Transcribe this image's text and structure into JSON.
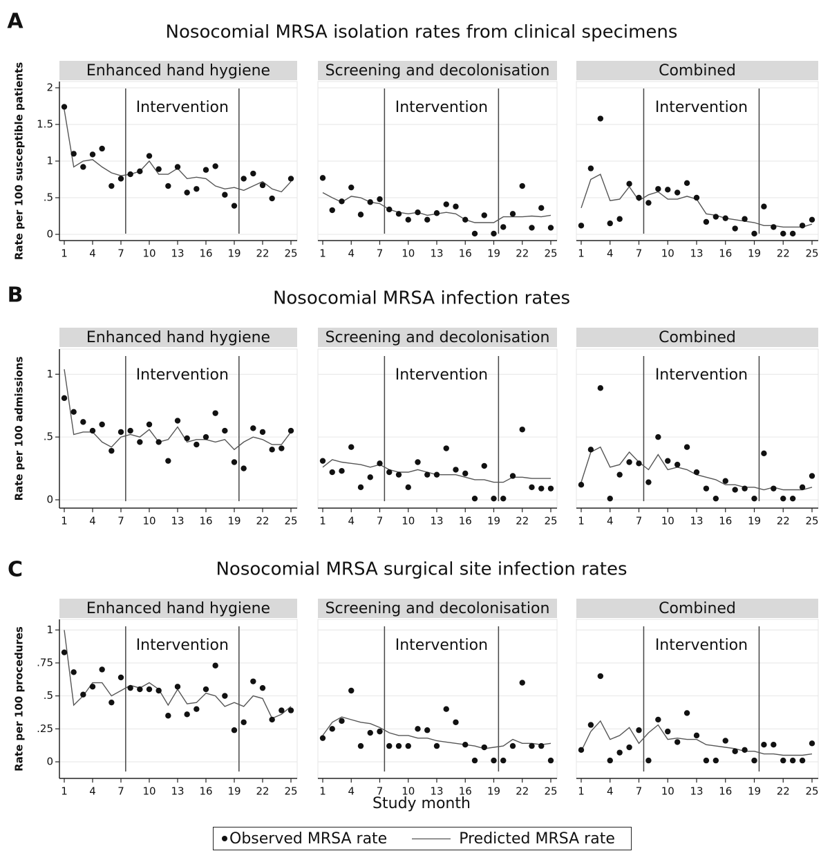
{
  "xlabel": "Study month",
  "legend": {
    "observed": "Observed MRSA rate",
    "predicted": "Predicted MRSA rate"
  },
  "colors": {
    "strip": "#d9d9d9",
    "points": "#111111",
    "line": "#555555",
    "grid": "#e6e6e6",
    "intervention_line": "#444444"
  },
  "chart_data": [
    {
      "type": "line",
      "label": "A",
      "title": "Nosocomial MRSA isolation rates from clinical specimens",
      "ylabel": "Rate per 100 susceptible patients",
      "ylim": [
        0,
        2
      ],
      "yticks": [
        0,
        0.5,
        1,
        1.5,
        2
      ],
      "ytick_labels": [
        "0",
        ".5",
        "1",
        "1.5",
        "2"
      ],
      "xlim": [
        1,
        25
      ],
      "xticks": [
        1,
        4,
        7,
        10,
        13,
        16,
        19,
        22,
        25
      ],
      "panels": [
        {
          "name": "Enhanced hand hygiene",
          "annotation": "Intervention",
          "intervention": [
            7.5,
            19.5
          ],
          "observed": [
            1.74,
            1.1,
            0.92,
            1.09,
            1.17,
            0.66,
            0.76,
            0.82,
            0.86,
            1.07,
            0.89,
            0.66,
            0.92,
            0.57,
            0.62,
            0.88,
            0.93,
            0.54,
            0.39,
            0.76,
            0.83,
            0.67,
            0.49,
            0.76
          ],
          "observed_x": [
            1,
            2,
            3,
            4,
            5,
            6,
            7,
            8,
            9,
            10,
            11,
            12,
            13,
            14,
            15,
            16,
            17,
            18,
            19,
            20,
            21,
            22,
            23,
            25
          ],
          "predicted": [
            1.7,
            0.92,
            1.0,
            1.02,
            0.92,
            0.84,
            0.8,
            0.82,
            0.86,
            1.0,
            0.82,
            0.82,
            0.9,
            0.76,
            0.78,
            0.76,
            0.66,
            0.62,
            0.64,
            0.6,
            0.66,
            0.72,
            0.62,
            0.58,
            0.72
          ]
        },
        {
          "name": "Screening and decolonisation",
          "annotation": "Intervention",
          "intervention": [
            7.5,
            19.5
          ],
          "observed": [
            0.77,
            0.33,
            0.45,
            0.64,
            0.27,
            0.44,
            0.48,
            0.34,
            0.28,
            0.2,
            0.3,
            0.2,
            0.29,
            0.41,
            0.38,
            0.2,
            0.01,
            0.26,
            0.01,
            0.1,
            0.28,
            0.66,
            0.09,
            0.36,
            0.09
          ],
          "predicted": [
            0.57,
            0.5,
            0.44,
            0.52,
            0.5,
            0.44,
            0.42,
            0.34,
            0.3,
            0.28,
            0.3,
            0.26,
            0.28,
            0.3,
            0.28,
            0.2,
            0.16,
            0.16,
            0.16,
            0.24,
            0.24,
            0.24,
            0.25,
            0.24,
            0.26
          ]
        },
        {
          "name": "Combined",
          "annotation": "Intervention",
          "intervention": [
            7.5,
            19.5
          ],
          "observed": [
            0.12,
            0.9,
            1.58,
            0.15,
            0.21,
            0.69,
            0.5,
            0.43,
            0.62,
            0.61,
            0.57,
            0.7,
            0.5,
            0.17,
            0.24,
            0.22,
            0.08,
            0.21,
            0.01,
            0.38,
            0.1,
            0.01,
            0.01,
            0.12,
            0.2
          ],
          "predicted": [
            0.36,
            0.75,
            0.82,
            0.46,
            0.48,
            0.65,
            0.46,
            0.54,
            0.58,
            0.48,
            0.48,
            0.52,
            0.48,
            0.28,
            0.26,
            0.22,
            0.2,
            0.18,
            0.16,
            0.12,
            0.12,
            0.1,
            0.1,
            0.1,
            0.14
          ]
        }
      ]
    },
    {
      "type": "line",
      "label": "B",
      "title": "Nosocomial MRSA infection rates",
      "ylabel": "Rate per 100 admissions",
      "ylim": [
        0,
        1.2
      ],
      "yticks": [
        0,
        0.5,
        1
      ],
      "ytick_labels": [
        "0",
        ".5",
        "1"
      ],
      "xlim": [
        1,
        25
      ],
      "xticks": [
        1,
        4,
        7,
        10,
        13,
        16,
        19,
        22,
        25
      ],
      "panels": [
        {
          "name": "Enhanced hand hygiene",
          "annotation": "Intervention",
          "intervention": [
            7.5,
            19.5
          ],
          "observed": [
            0.81,
            0.7,
            0.62,
            0.55,
            0.6,
            0.39,
            0.54,
            0.55,
            0.46,
            0.6,
            0.46,
            0.31,
            0.63,
            0.49,
            0.44,
            0.5,
            0.69,
            0.55,
            0.3,
            0.25,
            0.57,
            0.54,
            0.4,
            0.41,
            0.55
          ],
          "predicted": [
            1.04,
            0.52,
            0.54,
            0.54,
            0.46,
            0.42,
            0.5,
            0.52,
            0.5,
            0.56,
            0.46,
            0.48,
            0.58,
            0.46,
            0.48,
            0.48,
            0.46,
            0.48,
            0.4,
            0.46,
            0.5,
            0.48,
            0.44,
            0.44,
            0.54
          ]
        },
        {
          "name": "Screening and decolonisation",
          "annotation": "Intervention",
          "intervention": [
            7.5,
            19.5
          ],
          "observed": [
            0.31,
            0.22,
            0.23,
            0.42,
            0.1,
            0.18,
            0.29,
            0.22,
            0.2,
            0.1,
            0.3,
            0.2,
            0.2,
            0.41,
            0.24,
            0.21,
            0.01,
            0.27,
            0.01,
            0.01,
            0.19,
            0.56,
            0.1,
            0.09,
            0.09
          ],
          "predicted": [
            0.26,
            0.32,
            0.3,
            0.29,
            0.28,
            0.26,
            0.28,
            0.24,
            0.22,
            0.22,
            0.24,
            0.22,
            0.2,
            0.2,
            0.2,
            0.18,
            0.16,
            0.16,
            0.14,
            0.14,
            0.18,
            0.18,
            0.17,
            0.17,
            0.17
          ]
        },
        {
          "name": "Combined",
          "annotation": "Intervention",
          "intervention": [
            7.5,
            19.5
          ],
          "observed": [
            0.12,
            0.4,
            0.89,
            0.01,
            0.2,
            0.3,
            0.29,
            0.14,
            0.5,
            0.31,
            0.28,
            0.42,
            0.22,
            0.09,
            0.01,
            0.15,
            0.08,
            0.09,
            0.01,
            0.37,
            0.09,
            0.01,
            0.01,
            0.1,
            0.19
          ],
          "predicted": [
            0.14,
            0.38,
            0.42,
            0.26,
            0.28,
            0.38,
            0.3,
            0.24,
            0.36,
            0.24,
            0.26,
            0.24,
            0.2,
            0.18,
            0.16,
            0.12,
            0.12,
            0.1,
            0.1,
            0.08,
            0.1,
            0.08,
            0.08,
            0.08,
            0.1
          ]
        }
      ]
    },
    {
      "type": "line",
      "label": "C",
      "title": "Nosocomial MRSA surgical site infection rates",
      "ylabel": "Rate per 100 procedures",
      "ylim": [
        0,
        1.08
      ],
      "yticks": [
        0,
        0.25,
        0.5,
        0.75,
        1
      ],
      "ytick_labels": [
        "0",
        ".25",
        ".5",
        ".75",
        "1"
      ],
      "xlim": [
        1,
        25
      ],
      "xticks": [
        1,
        4,
        7,
        10,
        13,
        16,
        19,
        22,
        25
      ],
      "panels": [
        {
          "name": "Enhanced hand hygiene",
          "annotation": "Intervention",
          "intervention": [
            7.5,
            19.5
          ],
          "observed": [
            0.83,
            0.68,
            0.51,
            0.57,
            0.7,
            0.45,
            0.64,
            0.56,
            0.55,
            0.55,
            0.54,
            0.35,
            0.57,
            0.36,
            0.4,
            0.55,
            0.73,
            0.5,
            0.24,
            0.3,
            0.61,
            0.56,
            0.32,
            0.39,
            0.39
          ],
          "predicted": [
            1.0,
            0.43,
            0.5,
            0.6,
            0.6,
            0.5,
            0.54,
            0.58,
            0.56,
            0.6,
            0.55,
            0.43,
            0.55,
            0.44,
            0.45,
            0.52,
            0.5,
            0.42,
            0.45,
            0.42,
            0.5,
            0.48,
            0.33,
            0.36,
            0.42
          ]
        },
        {
          "name": "Screening and decolonisation",
          "annotation": "Intervention",
          "intervention": [
            7.5,
            19.5
          ],
          "observed": [
            0.18,
            0.25,
            0.31,
            0.54,
            0.12,
            0.22,
            0.23,
            0.12,
            0.12,
            0.12,
            0.25,
            0.24,
            0.12,
            0.4,
            0.3,
            0.13,
            0.01,
            0.11,
            0.01,
            0.01,
            0.12,
            0.6,
            0.12,
            0.12,
            0.01
          ],
          "predicted": [
            0.2,
            0.3,
            0.34,
            0.32,
            0.3,
            0.29,
            0.26,
            0.22,
            0.2,
            0.2,
            0.18,
            0.18,
            0.16,
            0.15,
            0.14,
            0.13,
            0.12,
            0.1,
            0.11,
            0.12,
            0.17,
            0.14,
            0.14,
            0.13,
            0.14
          ]
        },
        {
          "name": "Combined",
          "annotation": "Intervention",
          "intervention": [
            7.5,
            19.5
          ],
          "observed": [
            0.09,
            0.28,
            0.65,
            0.01,
            0.07,
            0.11,
            0.24,
            0.01,
            0.32,
            0.23,
            0.15,
            0.37,
            0.2,
            0.01,
            0.01,
            0.16,
            0.08,
            0.09,
            0.01,
            0.13,
            0.13,
            0.01,
            0.01,
            0.01,
            0.14
          ],
          "predicted": [
            0.08,
            0.23,
            0.31,
            0.17,
            0.2,
            0.26,
            0.14,
            0.22,
            0.28,
            0.17,
            0.18,
            0.17,
            0.17,
            0.13,
            0.12,
            0.11,
            0.1,
            0.08,
            0.08,
            0.06,
            0.06,
            0.05,
            0.05,
            0.05,
            0.06
          ]
        }
      ]
    }
  ]
}
